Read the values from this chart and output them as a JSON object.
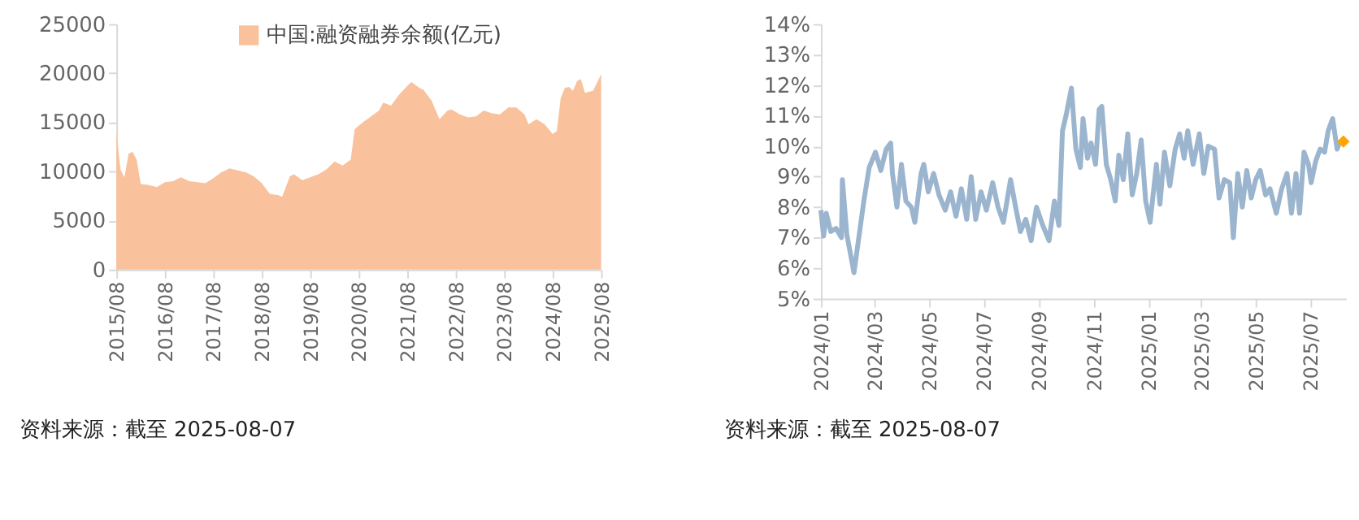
{
  "chart_data": [
    {
      "type": "area",
      "legend": "top",
      "xlim": [
        "2015-08",
        "2025-08"
      ],
      "xticks": [
        {
          "value": "2015-08",
          "label": "2015/08"
        },
        {
          "value": "2016-08",
          "label": "2016/08"
        },
        {
          "value": "2017-08",
          "label": "2017/08"
        },
        {
          "value": "2018-08",
          "label": "2018/08"
        },
        {
          "value": "2019-08",
          "label": "2019/08"
        },
        {
          "value": "2020-08",
          "label": "2020/08"
        },
        {
          "value": "2021-08",
          "label": "2021/08"
        },
        {
          "value": "2022-08",
          "label": "2022/08"
        },
        {
          "value": "2023-08",
          "label": "2023/08"
        },
        {
          "value": "2024-08",
          "label": "2024/08"
        },
        {
          "value": "2025-08",
          "label": "2025/08"
        }
      ],
      "ylim": [
        0,
        25000
      ],
      "yticks": [
        0,
        5000,
        10000,
        15000,
        20000,
        25000
      ],
      "grid": false,
      "annotations": [
        "资料来源：截至 2025-08-07"
      ],
      "x": [
        "2015-08",
        "2015-09",
        "2015-10",
        "2015-11",
        "2015-12",
        "2016-01",
        "2016-02",
        "2016-04",
        "2016-06",
        "2016-08",
        "2016-10",
        "2016-12",
        "2017-02",
        "2017-04",
        "2017-06",
        "2017-08",
        "2017-10",
        "2017-12",
        "2018-02",
        "2018-04",
        "2018-06",
        "2018-08",
        "2018-10",
        "2018-12",
        "2019-01",
        "2019-03",
        "2019-04",
        "2019-06",
        "2019-08",
        "2019-10",
        "2019-12",
        "2020-02",
        "2020-04",
        "2020-06",
        "2020-07",
        "2020-09",
        "2020-11",
        "2021-01",
        "2021-02",
        "2021-04",
        "2021-06",
        "2021-08",
        "2021-09",
        "2021-11",
        "2021-12",
        "2022-02",
        "2022-04",
        "2022-06",
        "2022-07",
        "2022-09",
        "2022-11",
        "2023-01",
        "2023-03",
        "2023-05",
        "2023-07",
        "2023-09",
        "2023-11",
        "2024-01",
        "2024-02",
        "2024-04",
        "2024-06",
        "2024-08",
        "2024-09",
        "2024-10",
        "2024-11",
        "2024-12",
        "2025-01",
        "2025-02",
        "2025-03",
        "2025-04",
        "2025-06",
        "2025-07",
        "2025-08"
      ],
      "series": [
        {
          "name": "中国:融资融券余额(亿元)",
          "color": "#f9c19c",
          "values": [
            14000,
            10200,
            9400,
            11800,
            12000,
            11200,
            8700,
            8600,
            8400,
            8900,
            9000,
            9400,
            9000,
            8900,
            8800,
            9300,
            9900,
            10300,
            10100,
            9900,
            9500,
            8800,
            7700,
            7600,
            7400,
            9500,
            9700,
            9100,
            9400,
            9700,
            10200,
            11000,
            10600,
            11200,
            14300,
            15000,
            15600,
            16200,
            17000,
            16700,
            17800,
            18700,
            19100,
            18500,
            18300,
            17200,
            15300,
            16200,
            16300,
            15800,
            15500,
            15600,
            16200,
            15900,
            15800,
            16500,
            16500,
            15800,
            14800,
            15300,
            14800,
            13800,
            14100,
            17500,
            18500,
            18600,
            18200,
            19200,
            19400,
            18000,
            18200,
            19000,
            19900
          ]
        }
      ]
    },
    {
      "type": "line",
      "legend": false,
      "xlim": [
        "2024-01-01",
        "2025-08-10"
      ],
      "xticks": [
        {
          "value": "2024-01-01",
          "label": "2024/01"
        },
        {
          "value": "2024-03-01",
          "label": "2024/03"
        },
        {
          "value": "2024-05-01",
          "label": "2024/05"
        },
        {
          "value": "2024-07-01",
          "label": "2024/07"
        },
        {
          "value": "2024-09-01",
          "label": "2024/09"
        },
        {
          "value": "2024-11-01",
          "label": "2024/11"
        },
        {
          "value": "2025-01-01",
          "label": "2025/01"
        },
        {
          "value": "2025-03-01",
          "label": "2025/03"
        },
        {
          "value": "2025-05-01",
          "label": "2025/05"
        },
        {
          "value": "2025-07-01",
          "label": "2025/07"
        }
      ],
      "ylim": [
        5,
        14
      ],
      "yticks": [
        {
          "value": 5,
          "label": "5%"
        },
        {
          "value": 6,
          "label": "6%"
        },
        {
          "value": 7,
          "label": "7%"
        },
        {
          "value": 8,
          "label": "8%"
        },
        {
          "value": 9,
          "label": "9%"
        },
        {
          "value": 10,
          "label": "10%"
        },
        {
          "value": 11,
          "label": "11%"
        },
        {
          "value": 12,
          "label": "12%"
        },
        {
          "value": 13,
          "label": "13%"
        },
        {
          "value": 14,
          "label": "14%"
        }
      ],
      "grid": false,
      "annotations": [
        "资料来源：截至 2025-08-07"
      ],
      "series": [
        {
          "type": "line",
          "color": "#9bb5cf",
          "marker": "none",
          "line_style": "solid",
          "x": [
            "2024-01-01",
            "2024-01-04",
            "2024-01-07",
            "2024-01-12",
            "2024-01-18",
            "2024-01-24",
            "2024-01-25",
            "2024-01-30",
            "2024-02-07",
            "2024-02-18",
            "2024-02-24",
            "2024-03-02",
            "2024-03-08",
            "2024-03-14",
            "2024-03-19",
            "2024-03-21",
            "2024-03-26",
            "2024-03-31",
            "2024-04-05",
            "2024-04-11",
            "2024-04-15",
            "2024-04-22",
            "2024-04-25",
            "2024-04-30",
            "2024-05-06",
            "2024-05-12",
            "2024-05-19",
            "2024-05-25",
            "2024-05-31",
            "2024-06-06",
            "2024-06-12",
            "2024-06-17",
            "2024-06-22",
            "2024-06-28",
            "2024-07-04",
            "2024-07-11",
            "2024-07-17",
            "2024-07-23",
            "2024-07-31",
            "2024-08-05",
            "2024-08-11",
            "2024-08-17",
            "2024-08-23",
            "2024-08-29",
            "2024-09-05",
            "2024-09-12",
            "2024-09-18",
            "2024-09-23",
            "2024-09-27",
            "2024-10-01",
            "2024-10-07",
            "2024-10-12",
            "2024-10-17",
            "2024-10-20",
            "2024-10-25",
            "2024-10-29",
            "2024-11-03",
            "2024-11-07",
            "2024-11-10",
            "2024-11-15",
            "2024-11-20",
            "2024-11-25",
            "2024-11-29",
            "2024-12-04",
            "2024-12-09",
            "2024-12-14",
            "2024-12-19",
            "2024-12-24",
            "2024-12-29",
            "2025-01-03",
            "2025-01-10",
            "2025-01-14",
            "2025-01-19",
            "2025-01-25",
            "2025-01-31",
            "2025-02-05",
            "2025-02-10",
            "2025-02-14",
            "2025-02-20",
            "2025-02-27",
            "2025-03-04",
            "2025-03-09",
            "2025-03-16",
            "2025-03-21",
            "2025-03-27",
            "2025-04-02",
            "2025-04-06",
            "2025-04-11",
            "2025-04-16",
            "2025-04-21",
            "2025-04-26",
            "2025-05-01",
            "2025-05-06",
            "2025-05-12",
            "2025-05-17",
            "2025-05-24",
            "2025-05-30",
            "2025-06-05",
            "2025-06-10",
            "2025-06-15",
            "2025-06-19",
            "2025-06-24",
            "2025-06-29",
            "2025-07-02",
            "2025-07-07",
            "2025-07-12",
            "2025-07-17",
            "2025-07-21",
            "2025-07-26",
            "2025-07-31",
            "2025-08-03"
          ],
          "values": [
            7.9,
            7.05,
            7.8,
            7.2,
            7.3,
            7.0,
            8.9,
            7.1,
            5.85,
            8.2,
            9.3,
            9.8,
            9.2,
            9.9,
            10.1,
            9.1,
            8.0,
            9.4,
            8.2,
            8.0,
            7.5,
            9.1,
            9.4,
            8.5,
            9.1,
            8.4,
            7.9,
            8.5,
            7.7,
            8.6,
            7.6,
            9.0,
            7.6,
            8.5,
            7.9,
            8.8,
            8.0,
            7.5,
            8.9,
            8.1,
            7.2,
            7.6,
            6.9,
            8.0,
            7.4,
            6.9,
            8.2,
            7.4,
            10.5,
            11.0,
            11.9,
            9.9,
            9.3,
            10.9,
            9.6,
            10.1,
            9.4,
            11.2,
            11.3,
            9.4,
            8.9,
            8.2,
            9.7,
            8.9,
            10.4,
            8.4,
            9.1,
            10.2,
            8.2,
            7.5,
            9.4,
            8.1,
            9.8,
            8.7,
            9.9,
            10.4,
            9.6,
            10.5,
            9.4,
            10.4,
            9.1,
            10.0,
            9.9,
            8.3,
            8.9,
            8.8,
            7.0,
            9.1,
            8.0,
            9.2,
            8.3,
            8.9,
            9.2,
            8.4,
            8.6,
            7.8,
            8.6,
            9.1,
            7.8,
            9.1,
            7.8,
            9.8,
            9.4,
            8.8,
            9.5,
            9.9,
            9.8,
            10.5,
            10.9,
            9.9,
            10.15
          ]
        },
        {
          "type": "scatter",
          "color": "#ffa500",
          "marker": "diamond",
          "x": [
            "2025-08-07"
          ],
          "values": [
            10.15
          ]
        }
      ]
    }
  ]
}
